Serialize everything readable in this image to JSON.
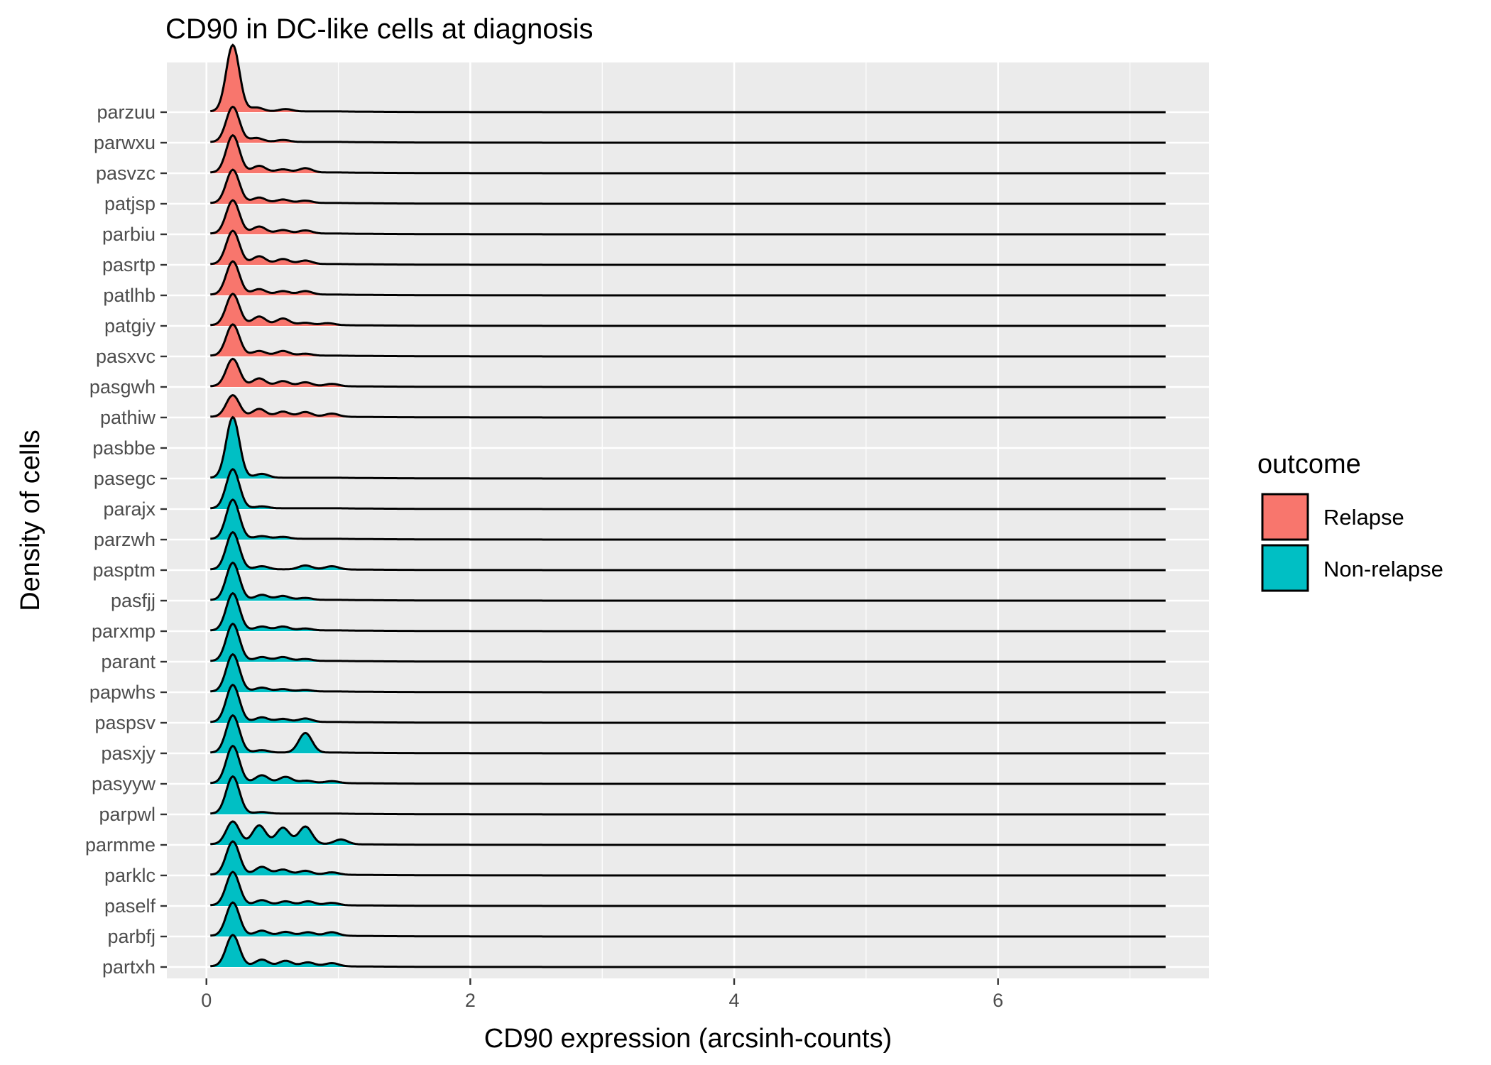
{
  "chart_data": {
    "type": "ridgeline-density",
    "title": "CD90 in DC-like cells at diagnosis",
    "xlabel": "CD90 expression (arcsinh-counts)",
    "ylabel": "Density of cells",
    "xlim": [
      -0.3,
      7.6
    ],
    "xticks": [
      0,
      2,
      4,
      6
    ],
    "grid": true,
    "legend": {
      "title": "outcome",
      "placement": "right",
      "entries": [
        {
          "name": "Relapse",
          "color": "#F8766D"
        },
        {
          "name": "Non-relapse",
          "color": "#00BFC4"
        }
      ]
    },
    "x_range_of_curves": [
      0.03,
      7.27
    ],
    "series": [
      {
        "patient": "parzuu",
        "outcome": "Relapse",
        "bumps": [
          [
            0.2,
            1.7
          ],
          [
            0.38,
            0.1
          ],
          [
            0.6,
            0.06
          ]
        ]
      },
      {
        "patient": "parwxu",
        "outcome": "Relapse",
        "bumps": [
          [
            0.2,
            0.9
          ],
          [
            0.38,
            0.1
          ],
          [
            0.58,
            0.05
          ]
        ]
      },
      {
        "patient": "pasvzc",
        "outcome": "Relapse",
        "bumps": [
          [
            0.2,
            0.95
          ],
          [
            0.4,
            0.17
          ],
          [
            0.58,
            0.08
          ],
          [
            0.75,
            0.11
          ]
        ]
      },
      {
        "patient": "patjsp",
        "outcome": "Relapse",
        "bumps": [
          [
            0.2,
            0.85
          ],
          [
            0.4,
            0.14
          ],
          [
            0.58,
            0.09
          ],
          [
            0.75,
            0.06
          ]
        ]
      },
      {
        "patient": "parbiu",
        "outcome": "Relapse",
        "bumps": [
          [
            0.2,
            0.85
          ],
          [
            0.4,
            0.18
          ],
          [
            0.58,
            0.09
          ],
          [
            0.75,
            0.08
          ]
        ]
      },
      {
        "patient": "pasrtp",
        "outcome": "Relapse",
        "bumps": [
          [
            0.2,
            0.85
          ],
          [
            0.4,
            0.2
          ],
          [
            0.58,
            0.13
          ],
          [
            0.75,
            0.09
          ]
        ]
      },
      {
        "patient": "patlhb",
        "outcome": "Relapse",
        "bumps": [
          [
            0.2,
            0.85
          ],
          [
            0.4,
            0.14
          ],
          [
            0.58,
            0.09
          ],
          [
            0.75,
            0.09
          ]
        ]
      },
      {
        "patient": "patgiy",
        "outcome": "Relapse",
        "bumps": [
          [
            0.2,
            0.8
          ],
          [
            0.4,
            0.22
          ],
          [
            0.58,
            0.17
          ],
          [
            0.75,
            0.06
          ],
          [
            0.92,
            0.05
          ]
        ]
      },
      {
        "patient": "pasxvc",
        "outcome": "Relapse",
        "bumps": [
          [
            0.2,
            0.8
          ],
          [
            0.4,
            0.12
          ],
          [
            0.58,
            0.12
          ],
          [
            0.75,
            0.05
          ]
        ]
      },
      {
        "patient": "pasgwh",
        "outcome": "Relapse",
        "bumps": [
          [
            0.2,
            0.7
          ],
          [
            0.4,
            0.2
          ],
          [
            0.58,
            0.13
          ],
          [
            0.75,
            0.1
          ],
          [
            0.95,
            0.06
          ]
        ]
      },
      {
        "patient": "pathiw",
        "outcome": "Relapse",
        "bumps": [
          [
            0.2,
            0.55
          ],
          [
            0.4,
            0.2
          ],
          [
            0.58,
            0.13
          ],
          [
            0.75,
            0.12
          ],
          [
            0.95,
            0.08
          ]
        ]
      },
      {
        "patient": "pasbbe",
        "outcome": "Non-relapse",
        "bumps": []
      },
      {
        "patient": "pasegc",
        "outcome": "Non-relapse",
        "bumps": [
          [
            0.2,
            1.55
          ],
          [
            0.42,
            0.1
          ]
        ]
      },
      {
        "patient": "parajx",
        "outcome": "Non-relapse",
        "bumps": [
          [
            0.2,
            1.0
          ],
          [
            0.42,
            0.05
          ]
        ]
      },
      {
        "patient": "parzwh",
        "outcome": "Non-relapse",
        "bumps": [
          [
            0.2,
            1.0
          ],
          [
            0.42,
            0.07
          ],
          [
            0.58,
            0.05
          ]
        ]
      },
      {
        "patient": "pasptm",
        "outcome": "Non-relapse",
        "bumps": [
          [
            0.2,
            0.95
          ],
          [
            0.42,
            0.08
          ],
          [
            0.75,
            0.1
          ],
          [
            0.95,
            0.08
          ]
        ]
      },
      {
        "patient": "pasfjj",
        "outcome": "Non-relapse",
        "bumps": [
          [
            0.2,
            0.95
          ],
          [
            0.42,
            0.13
          ],
          [
            0.58,
            0.1
          ],
          [
            0.75,
            0.05
          ]
        ]
      },
      {
        "patient": "parxmp",
        "outcome": "Non-relapse",
        "bumps": [
          [
            0.2,
            0.95
          ],
          [
            0.42,
            0.1
          ],
          [
            0.58,
            0.1
          ],
          [
            0.75,
            0.05
          ]
        ]
      },
      {
        "patient": "parant",
        "outcome": "Non-relapse",
        "bumps": [
          [
            0.2,
            0.95
          ],
          [
            0.42,
            0.1
          ],
          [
            0.58,
            0.1
          ],
          [
            0.75,
            0.05
          ]
        ]
      },
      {
        "patient": "papwhs",
        "outcome": "Non-relapse",
        "bumps": [
          [
            0.2,
            0.95
          ],
          [
            0.42,
            0.1
          ],
          [
            0.58,
            0.06
          ],
          [
            0.75,
            0.04
          ]
        ]
      },
      {
        "patient": "paspsv",
        "outcome": "Non-relapse",
        "bumps": [
          [
            0.2,
            0.95
          ],
          [
            0.42,
            0.12
          ],
          [
            0.58,
            0.08
          ],
          [
            0.75,
            0.09
          ]
        ]
      },
      {
        "patient": "pasxjy",
        "outcome": "Non-relapse",
        "bumps": [
          [
            0.2,
            0.95
          ],
          [
            0.42,
            0.06
          ],
          [
            0.75,
            0.5
          ]
        ]
      },
      {
        "patient": "pasyyw",
        "outcome": "Non-relapse",
        "bumps": [
          [
            0.2,
            0.95
          ],
          [
            0.42,
            0.2
          ],
          [
            0.6,
            0.16
          ],
          [
            0.76,
            0.06
          ],
          [
            0.95,
            0.05
          ]
        ]
      },
      {
        "patient": "parpwl",
        "outcome": "Non-relapse",
        "bumps": [
          [
            0.2,
            0.95
          ],
          [
            0.42,
            0.04
          ]
        ]
      },
      {
        "patient": "parmme",
        "outcome": "Non-relapse",
        "bumps": [
          [
            0.2,
            0.58
          ],
          [
            0.4,
            0.48
          ],
          [
            0.58,
            0.42
          ],
          [
            0.75,
            0.45
          ],
          [
            1.02,
            0.12
          ]
        ]
      },
      {
        "patient": "parklc",
        "outcome": "Non-relapse",
        "bumps": [
          [
            0.2,
            0.85
          ],
          [
            0.42,
            0.2
          ],
          [
            0.58,
            0.13
          ],
          [
            0.75,
            0.1
          ],
          [
            0.95,
            0.06
          ]
        ]
      },
      {
        "patient": "paself",
        "outcome": "Non-relapse",
        "bumps": [
          [
            0.2,
            0.85
          ],
          [
            0.42,
            0.13
          ],
          [
            0.6,
            0.1
          ],
          [
            0.77,
            0.1
          ],
          [
            0.95,
            0.06
          ]
        ]
      },
      {
        "patient": "parbfj",
        "outcome": "Non-relapse",
        "bumps": [
          [
            0.2,
            0.85
          ],
          [
            0.42,
            0.13
          ],
          [
            0.6,
            0.1
          ],
          [
            0.77,
            0.09
          ],
          [
            0.95,
            0.09
          ]
        ]
      },
      {
        "patient": "partxh",
        "outcome": "Non-relapse",
        "bumps": [
          [
            0.2,
            0.8
          ],
          [
            0.42,
            0.17
          ],
          [
            0.6,
            0.14
          ],
          [
            0.77,
            0.1
          ],
          [
            0.95,
            0.08
          ]
        ]
      }
    ]
  }
}
